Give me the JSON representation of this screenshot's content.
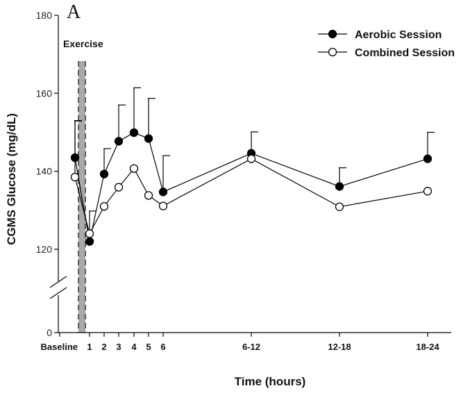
{
  "chart_data": {
    "type": "line",
    "panel_label": "A",
    "xlabel": "Time (hours)",
    "ylabel": "CGMS Glucose (mg/dL)",
    "ylim": [
      0,
      180
    ],
    "axis_break": "between 0 and 120",
    "y_ticks": [
      0,
      120,
      140,
      160,
      180
    ],
    "x_tick_labels": [
      {
        "key": "baseline",
        "label": "Baseline"
      },
      {
        "key": "h1",
        "label": "1"
      },
      {
        "key": "h2",
        "label": "2"
      },
      {
        "key": "h3",
        "label": "3"
      },
      {
        "key": "h4",
        "label": "4"
      },
      {
        "key": "h5",
        "label": "5"
      },
      {
        "key": "h6",
        "label": "6"
      },
      {
        "key": "h6_12",
        "label": "6-12"
      },
      {
        "key": "h12_18",
        "label": "12-18"
      },
      {
        "key": "h18_24",
        "label": "18-24"
      }
    ],
    "annotation": "Exercise",
    "legend_position": "top-right",
    "series": [
      {
        "name": "Aerobic Session",
        "marker": "filled-circle",
        "points": [
          {
            "x": "baseline",
            "y": 143.5,
            "err": 9.5
          },
          {
            "x": "exercise_end",
            "y": 122,
            "err": 0
          },
          {
            "x": "h1",
            "y": 139.3,
            "err": 6.5
          },
          {
            "x": "h2",
            "y": 147.7,
            "err": 9.3
          },
          {
            "x": "h3",
            "y": 149.9,
            "err": 11.5
          },
          {
            "x": "h4",
            "y": 148.4,
            "err": 10.3
          },
          {
            "x": "h5",
            "y": 134.7,
            "err": 9.3
          },
          {
            "x": "h6_12",
            "y": 144.6,
            "err": 5.5
          },
          {
            "x": "h12_18",
            "y": 136.1,
            "err": 4.8
          },
          {
            "x": "h18_24",
            "y": 143.2,
            "err": 6.8
          }
        ]
      },
      {
        "name": "Combined Session",
        "marker": "open-circle",
        "points": [
          {
            "x": "baseline",
            "y": 138.5,
            "err": 14.4
          },
          {
            "x": "exercise_end",
            "y": 124,
            "err": 5.8
          },
          {
            "x": "h1",
            "y": 131,
            "err": 0
          },
          {
            "x": "h2",
            "y": 135.9,
            "err": 0
          },
          {
            "x": "h3",
            "y": 140.7,
            "err": 0
          },
          {
            "x": "h4",
            "y": 133.8,
            "err": 0
          },
          {
            "x": "h5",
            "y": 131.1,
            "err": 0
          },
          {
            "x": "h6_12",
            "y": 143.2,
            "err": 0
          },
          {
            "x": "h12_18",
            "y": 130.9,
            "err": 0
          },
          {
            "x": "h18_24",
            "y": 134.9,
            "err": 0
          }
        ]
      }
    ]
  },
  "colors": {
    "line": "#000000",
    "exercise_band": "#a9a9a9"
  }
}
